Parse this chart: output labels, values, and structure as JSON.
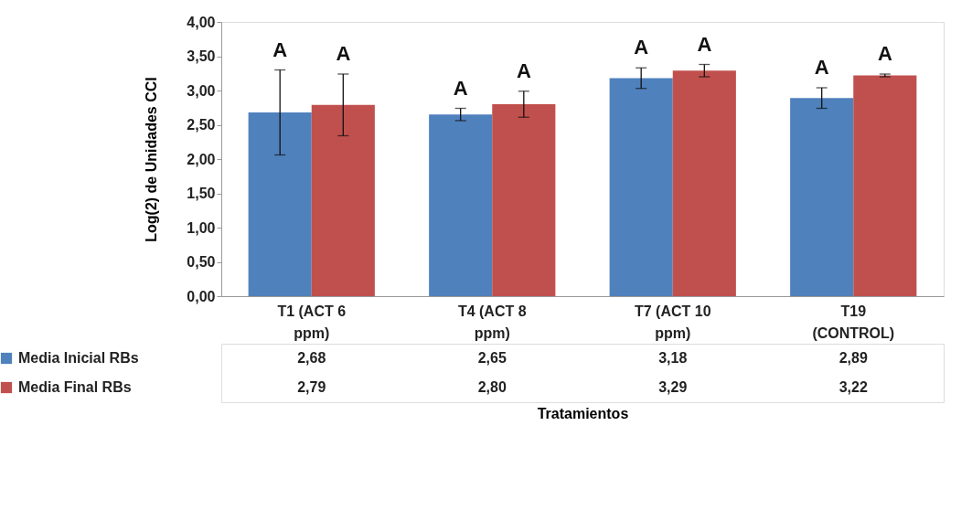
{
  "chart_data": {
    "type": "bar",
    "ylabel": "Log(2) de Unidades CCI",
    "xlabel": "Tratamientos",
    "categories": [
      "T1 (ACT 6 ppm)",
      "T4 (ACT 8 ppm)",
      "T7 (ACT 10 ppm)",
      "T19 (CONTROL)"
    ],
    "series": [
      {
        "name": "Media Inicial RBs",
        "color": "#4f81bd",
        "values": [
          2.68,
          2.65,
          3.18,
          2.89
        ],
        "errors": [
          0.62,
          0.09,
          0.15,
          0.15
        ],
        "value_labels": [
          "2,68",
          "2,65",
          "3,18",
          "2,89"
        ]
      },
      {
        "name": "Media Final RBs",
        "color": "#c0504d",
        "values": [
          2.79,
          2.8,
          3.29,
          3.22
        ],
        "errors": [
          0.45,
          0.19,
          0.09,
          0.02
        ],
        "value_labels": [
          "2,79",
          "2,80",
          "3,29",
          "3,22"
        ]
      }
    ],
    "ylim": [
      0,
      4
    ],
    "yticks": [
      {
        "value": 0,
        "label": "0,00"
      },
      {
        "value": 0.5,
        "label": "0,50"
      },
      {
        "value": 1,
        "label": "1,00"
      },
      {
        "value": 1.5,
        "label": "1,50"
      },
      {
        "value": 2,
        "label": "2,00"
      },
      {
        "value": 2.5,
        "label": "2,50"
      },
      {
        "value": 3,
        "label": "3,00"
      },
      {
        "value": 3.5,
        "label": "3,50"
      },
      {
        "value": 4,
        "label": "4,00"
      }
    ],
    "grid": false,
    "legend": "bottom left",
    "annotations": [
      "A",
      "A",
      "A",
      "A",
      "A",
      "A",
      "A",
      "A"
    ]
  }
}
